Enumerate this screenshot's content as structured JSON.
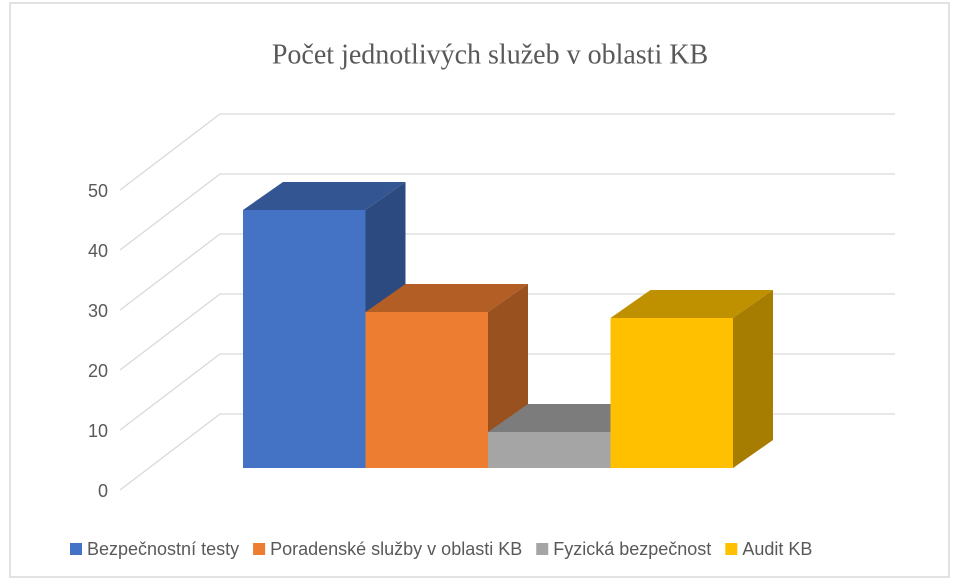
{
  "chart_data": {
    "type": "bar",
    "title": "Počet jednotlivých služeb v oblasti KB",
    "categories": [
      null
    ],
    "series": [
      {
        "name": "Bezpečnostní testy",
        "color": "#4472c4",
        "values": [
          43
        ]
      },
      {
        "name": "Poradenské služby v oblasti KB",
        "color": "#ed7d31",
        "values": [
          26
        ]
      },
      {
        "name": "Fyzická bezpečnost",
        "color": "#a5a5a5",
        "values": [
          6
        ]
      },
      {
        "name": "Audit KB",
        "color": "#ffc000",
        "values": [
          25
        ]
      }
    ],
    "ylim": [
      0,
      50
    ],
    "yticks": [
      0,
      10,
      20,
      30,
      40,
      50
    ],
    "grid": true,
    "legend": "bottom"
  }
}
